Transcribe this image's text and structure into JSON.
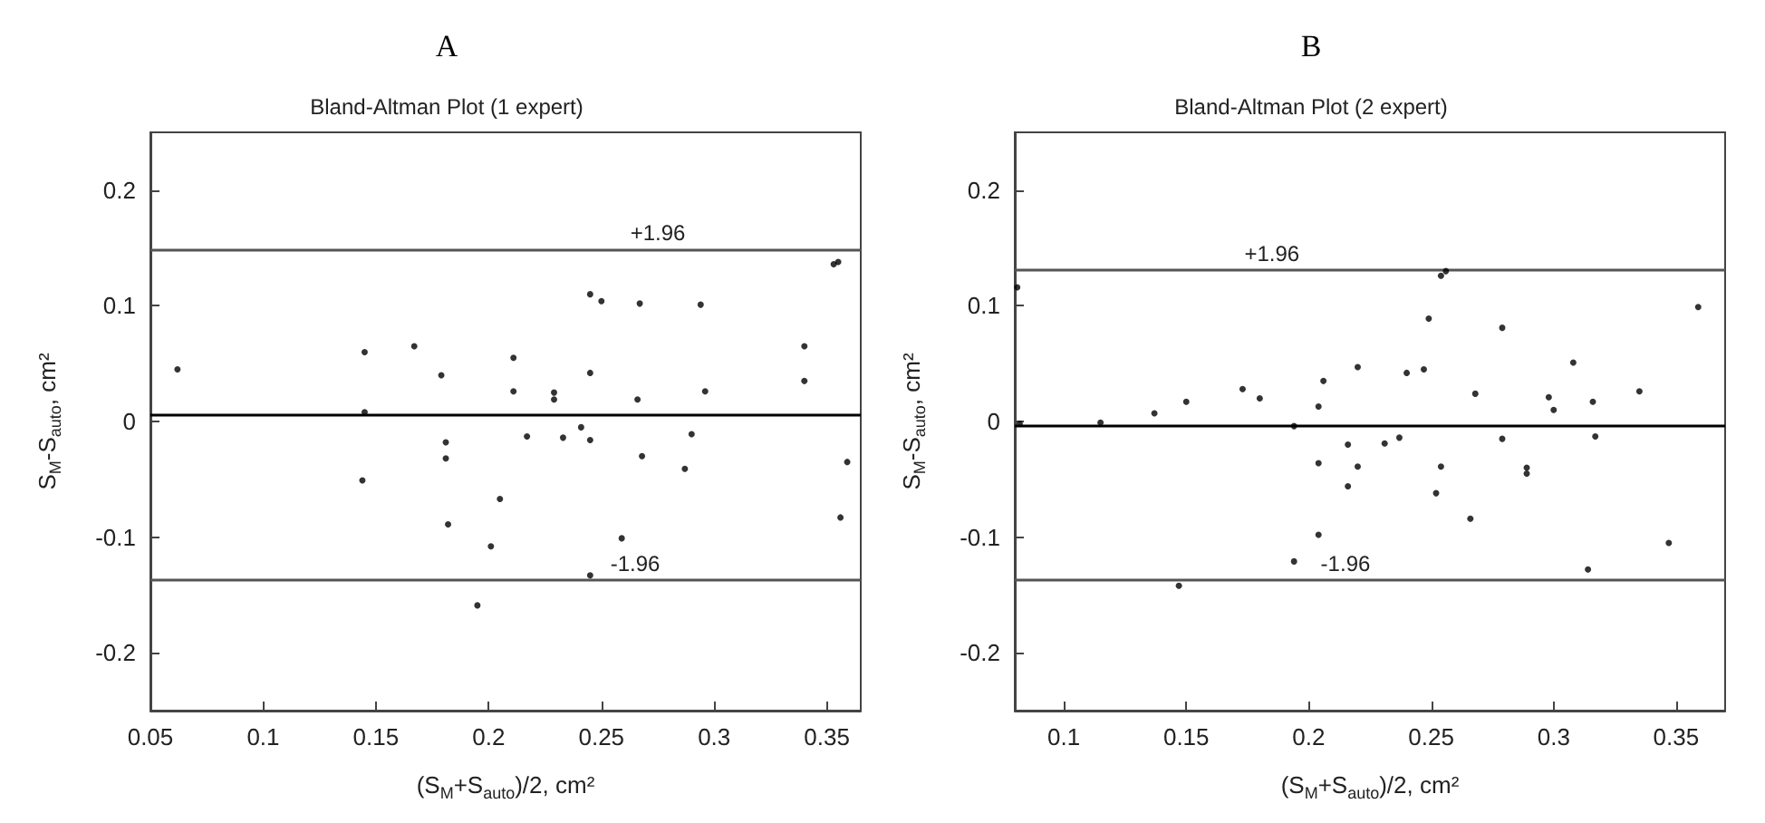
{
  "chart_data": [
    {
      "type": "scatter",
      "title": "Bland-Altman Plot (1 expert)",
      "annotations": [
        "A",
        {
          "text": "+1.96",
          "x": 0.275,
          "y": 0.149
        },
        {
          "text": "-1.96",
          "x": 0.265,
          "y": -0.137
        }
      ],
      "xlabel": "(S$_{M}$+S$_{auto}$)/2, cm²",
      "ylabel": "S$_{M}$-S$_{auto}$, cm²",
      "marker": "circle",
      "xlim": [
        0.05,
        0.365
      ],
      "xticks": [
        0.05,
        0.1,
        0.15,
        0.2,
        0.25,
        0.3,
        0.35
      ],
      "ylim": [
        -0.25,
        0.25
      ],
      "yticks": [
        -0.2,
        -0.1,
        0,
        0.1,
        0.2
      ],
      "ref_lines": [
        {
          "axis": "y",
          "value": 0.149,
          "color": "#555555"
        },
        {
          "axis": "y",
          "value": 0.006,
          "color": "#000000"
        },
        {
          "axis": "y",
          "value": -0.137,
          "color": "#555555"
        }
      ],
      "series": [
        {
          "color": "#000000",
          "x": [
            0.062,
            0.145,
            0.145,
            0.144,
            0.167,
            0.179,
            0.181,
            0.181,
            0.182,
            0.195,
            0.201,
            0.205,
            0.211,
            0.211,
            0.217,
            0.229,
            0.229,
            0.233,
            0.241,
            0.245,
            0.245,
            0.25,
            0.245,
            0.245,
            0.259,
            0.267,
            0.266,
            0.268,
            0.287,
            0.29,
            0.294,
            0.296,
            0.34,
            0.34,
            0.353,
            0.355,
            0.359,
            0.356
          ],
          "values": [
            0.045,
            0.06,
            0.008,
            -0.051,
            0.065,
            0.04,
            -0.018,
            -0.032,
            -0.089,
            -0.159,
            -0.108,
            -0.067,
            0.055,
            0.026,
            -0.013,
            0.025,
            0.019,
            -0.014,
            -0.005,
            -0.016,
            0.11,
            0.104,
            0.042,
            -0.133,
            -0.101,
            0.102,
            0.019,
            -0.03,
            -0.041,
            -0.011,
            0.101,
            0.026,
            0.065,
            0.035,
            0.136,
            0.138,
            -0.035,
            -0.083
          ]
        }
      ]
    },
    {
      "type": "scatter",
      "title": "Bland-Altman Plot (2 expert)",
      "annotations": [
        "B",
        {
          "text": "+1.96",
          "x": 0.185,
          "y": 0.131
        },
        {
          "text": "-1.96",
          "x": 0.215,
          "y": -0.137
        }
      ],
      "xlabel": "(S$_{M}$+S$_{auto}$)/2, cm²",
      "ylabel": "S$_{M}$-S$_{auto}$, cm²",
      "marker": "circle",
      "xlim": [
        0.08,
        0.37
      ],
      "xticks": [
        0.1,
        0.15,
        0.2,
        0.25,
        0.3,
        0.35
      ],
      "ylim": [
        -0.25,
        0.25
      ],
      "yticks": [
        -0.2,
        -0.1,
        0,
        0.1,
        0.2
      ],
      "ref_lines": [
        {
          "axis": "y",
          "value": 0.131,
          "color": "#555555"
        },
        {
          "axis": "y",
          "value": -0.003,
          "color": "#000000"
        },
        {
          "axis": "y",
          "value": -0.137,
          "color": "#555555"
        }
      ],
      "series": [
        {
          "color": "#000000",
          "x": [
            0.081,
            0.082,
            0.115,
            0.137,
            0.15,
            0.147,
            0.173,
            0.18,
            0.194,
            0.194,
            0.204,
            0.204,
            0.204,
            0.206,
            0.216,
            0.216,
            0.22,
            0.22,
            0.231,
            0.237,
            0.24,
            0.247,
            0.249,
            0.252,
            0.254,
            0.256,
            0.254,
            0.266,
            0.268,
            0.279,
            0.279,
            0.289,
            0.289,
            0.298,
            0.3,
            0.308,
            0.316,
            0.317,
            0.314,
            0.335,
            0.347,
            0.359
          ],
          "values": [
            0.116,
            -0.002,
            -0.001,
            0.007,
            0.017,
            -0.142,
            0.028,
            0.02,
            -0.121,
            -0.004,
            -0.098,
            0.013,
            -0.036,
            0.035,
            -0.02,
            -0.056,
            0.047,
            -0.039,
            -0.019,
            -0.014,
            0.042,
            0.045,
            0.089,
            -0.062,
            0.126,
            0.13,
            -0.039,
            -0.084,
            0.024,
            0.081,
            -0.015,
            -0.045,
            -0.04,
            0.021,
            0.01,
            0.051,
            0.017,
            -0.013,
            -0.128,
            0.026,
            -0.105,
            0.099
          ]
        }
      ]
    }
  ]
}
